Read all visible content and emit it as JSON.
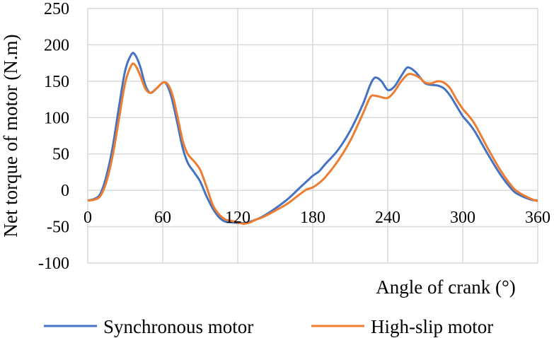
{
  "chart_data": {
    "type": "line",
    "title": "",
    "xlabel": "Angle of crank (°)",
    "ylabel": "Net torque of motor (N.m)",
    "xlim": [
      0,
      360
    ],
    "ylim": [
      -100,
      250
    ],
    "xticks": [
      0,
      60,
      120,
      180,
      240,
      300,
      360
    ],
    "yticks": [
      -100,
      -50,
      0,
      50,
      100,
      150,
      200,
      250
    ],
    "grid": true,
    "legend_position": "bottom",
    "series": [
      {
        "name": "Synchronous motor",
        "color": "#4472C4",
        "points": [
          [
            0,
            -14
          ],
          [
            5,
            -12
          ],
          [
            10,
            -5
          ],
          [
            15,
            20
          ],
          [
            20,
            60
          ],
          [
            25,
            115
          ],
          [
            30,
            165
          ],
          [
            35,
            187
          ],
          [
            38,
            186
          ],
          [
            42,
            170
          ],
          [
            46,
            145
          ],
          [
            50,
            134
          ],
          [
            55,
            140
          ],
          [
            60,
            148
          ],
          [
            63,
            146
          ],
          [
            67,
            128
          ],
          [
            72,
            90
          ],
          [
            76,
            58
          ],
          [
            80,
            38
          ],
          [
            85,
            25
          ],
          [
            90,
            12
          ],
          [
            95,
            -8
          ],
          [
            100,
            -25
          ],
          [
            105,
            -37
          ],
          [
            110,
            -43
          ],
          [
            115,
            -44
          ],
          [
            120,
            -45
          ],
          [
            125,
            -45
          ],
          [
            130,
            -43
          ],
          [
            135,
            -40
          ],
          [
            140,
            -36
          ],
          [
            150,
            -25
          ],
          [
            160,
            -12
          ],
          [
            170,
            4
          ],
          [
            175,
            12
          ],
          [
            180,
            20
          ],
          [
            185,
            26
          ],
          [
            190,
            36
          ],
          [
            200,
            55
          ],
          [
            210,
            82
          ],
          [
            220,
            118
          ],
          [
            226,
            145
          ],
          [
            230,
            155
          ],
          [
            235,
            150
          ],
          [
            240,
            138
          ],
          [
            245,
            142
          ],
          [
            250,
            155
          ],
          [
            255,
            168
          ],
          [
            258,
            168
          ],
          [
            262,
            163
          ],
          [
            266,
            155
          ],
          [
            270,
            147
          ],
          [
            275,
            145
          ],
          [
            280,
            144
          ],
          [
            285,
            140
          ],
          [
            290,
            130
          ],
          [
            295,
            116
          ],
          [
            300,
            102
          ],
          [
            305,
            92
          ],
          [
            310,
            80
          ],
          [
            320,
            50
          ],
          [
            330,
            22
          ],
          [
            340,
            0
          ],
          [
            345,
            -6
          ],
          [
            350,
            -10
          ],
          [
            355,
            -13
          ],
          [
            360,
            -14
          ]
        ]
      },
      {
        "name": "High-slip motor",
        "color": "#ED7D31",
        "points": [
          [
            0,
            -14
          ],
          [
            5,
            -13
          ],
          [
            10,
            -8
          ],
          [
            15,
            12
          ],
          [
            20,
            48
          ],
          [
            25,
            98
          ],
          [
            30,
            148
          ],
          [
            35,
            172
          ],
          [
            38,
            172
          ],
          [
            42,
            158
          ],
          [
            46,
            140
          ],
          [
            50,
            134
          ],
          [
            55,
            140
          ],
          [
            60,
            148
          ],
          [
            64,
            146
          ],
          [
            68,
            130
          ],
          [
            72,
            100
          ],
          [
            76,
            68
          ],
          [
            80,
            50
          ],
          [
            85,
            40
          ],
          [
            90,
            28
          ],
          [
            95,
            5
          ],
          [
            100,
            -20
          ],
          [
            105,
            -33
          ],
          [
            110,
            -40
          ],
          [
            115,
            -42
          ],
          [
            120,
            -44
          ],
          [
            125,
            -46
          ],
          [
            130,
            -44
          ],
          [
            135,
            -40
          ],
          [
            140,
            -37
          ],
          [
            150,
            -28
          ],
          [
            160,
            -18
          ],
          [
            170,
            -5
          ],
          [
            175,
            1
          ],
          [
            180,
            4
          ],
          [
            185,
            10
          ],
          [
            190,
            18
          ],
          [
            200,
            40
          ],
          [
            210,
            68
          ],
          [
            220,
            105
          ],
          [
            226,
            128
          ],
          [
            230,
            130
          ],
          [
            235,
            128
          ],
          [
            240,
            127
          ],
          [
            245,
            135
          ],
          [
            250,
            148
          ],
          [
            255,
            158
          ],
          [
            258,
            160
          ],
          [
            262,
            158
          ],
          [
            266,
            154
          ],
          [
            270,
            148
          ],
          [
            275,
            147
          ],
          [
            280,
            150
          ],
          [
            285,
            148
          ],
          [
            290,
            140
          ],
          [
            295,
            125
          ],
          [
            300,
            112
          ],
          [
            305,
            102
          ],
          [
            310,
            90
          ],
          [
            320,
            58
          ],
          [
            330,
            28
          ],
          [
            340,
            4
          ],
          [
            345,
            -3
          ],
          [
            350,
            -8
          ],
          [
            355,
            -12
          ],
          [
            360,
            -15
          ]
        ]
      }
    ]
  }
}
